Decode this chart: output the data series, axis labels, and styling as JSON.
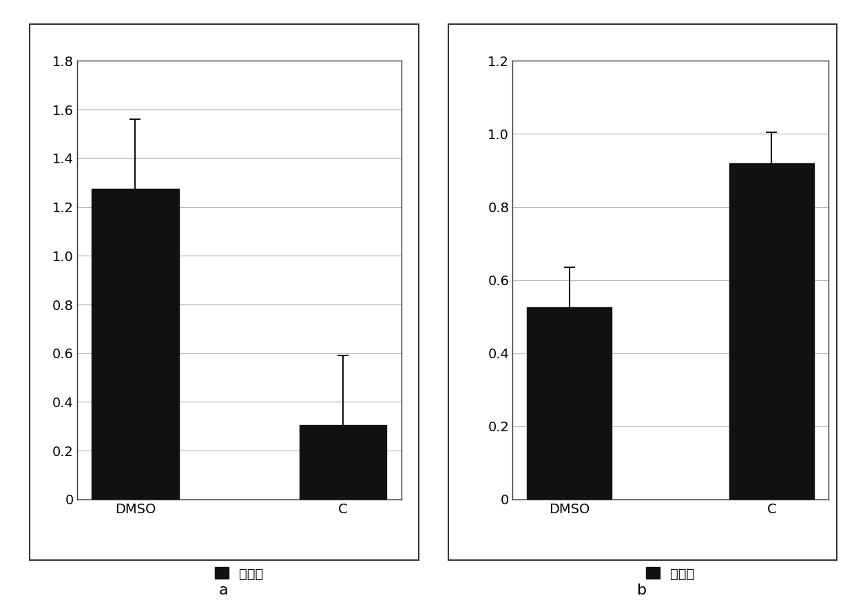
{
  "chart_a": {
    "categories": [
      "DMSO",
      "C"
    ],
    "values": [
      1.275,
      0.305
    ],
    "errors": [
      0.285,
      0.285
    ],
    "ylim": [
      0,
      1.8
    ],
    "yticks": [
      0,
      0.2,
      0.4,
      0.6,
      0.8,
      1.0,
      1.2,
      1.4,
      1.6,
      1.8
    ],
    "label": "a"
  },
  "chart_b": {
    "categories": [
      "DMSO",
      "C"
    ],
    "values": [
      0.525,
      0.92
    ],
    "errors": [
      0.11,
      0.085
    ],
    "ylim": [
      0,
      1.2
    ],
    "yticks": [
      0,
      0.2,
      0.4,
      0.6,
      0.8,
      1.0,
      1.2
    ],
    "label": "b"
  },
  "bar_color": "#111111",
  "bar_width": 0.42,
  "legend_label": "平均値",
  "background_color": "#ffffff",
  "grid_color": "#aaaaaa",
  "error_color": "#111111",
  "tick_fontsize": 14,
  "label_fontsize": 16,
  "legend_fontsize": 14,
  "spine_color": "#555555"
}
